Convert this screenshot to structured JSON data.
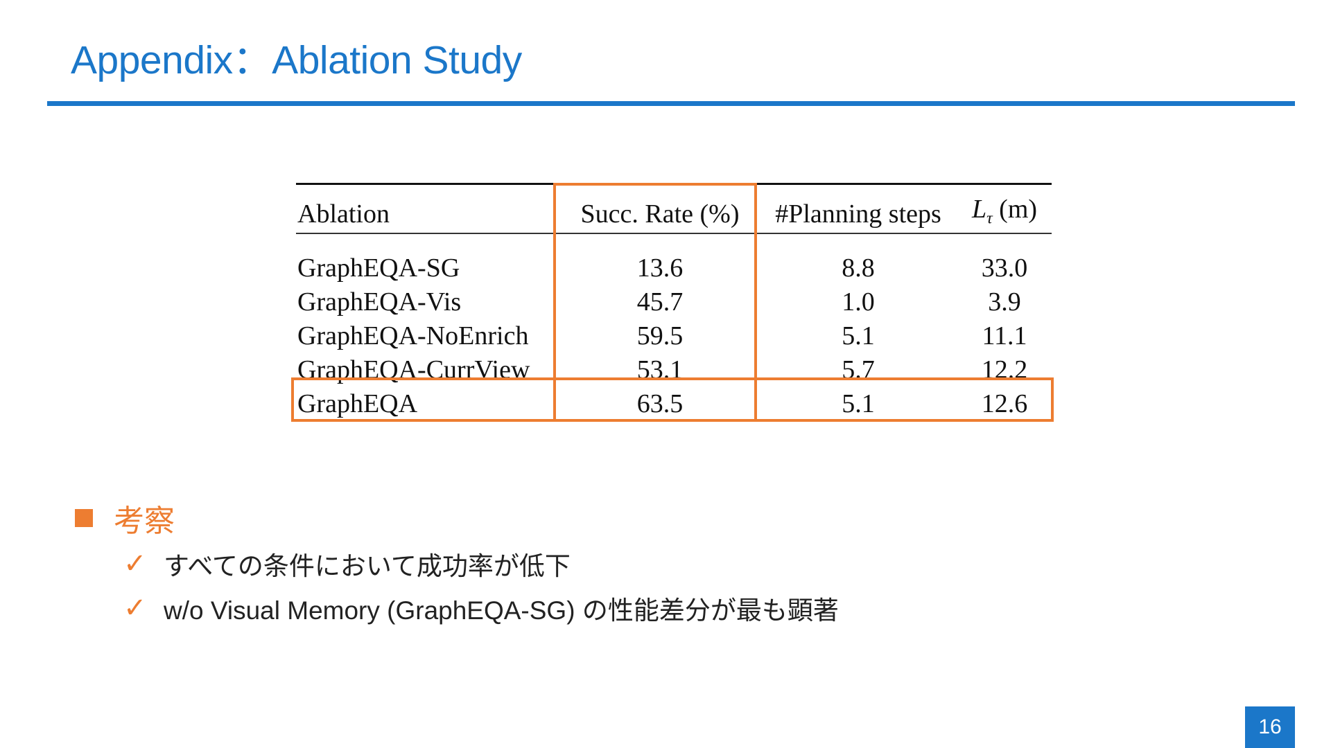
{
  "slide": {
    "title": "Appendix：Ablation Study",
    "page_number": "16"
  },
  "table": {
    "headers": {
      "ablation": "Ablation",
      "succ_rate": "Succ. Rate (%)",
      "planning_steps": "#Planning steps",
      "length_symbol": "L",
      "length_subscript": "τ",
      "length_unit": "(m)"
    },
    "rows": [
      {
        "ablation": "GraphEQA-SG",
        "succ_rate": "13.6",
        "planning_steps": "8.8",
        "length": "33.0"
      },
      {
        "ablation": "GraphEQA-Vis",
        "succ_rate": "45.7",
        "planning_steps": "1.0",
        "length": "3.9"
      },
      {
        "ablation": "GraphEQA-NoEnrich",
        "succ_rate": "59.5",
        "planning_steps": "5.1",
        "length": "11.1"
      },
      {
        "ablation": "GraphEQA-CurrView",
        "succ_rate": "53.1",
        "planning_steps": "5.7",
        "length": "12.2"
      },
      {
        "ablation": "GraphEQA",
        "succ_rate": "63.5",
        "planning_steps": "5.1",
        "length": "12.6"
      }
    ],
    "highlight_color": "#ed7d31"
  },
  "notes": {
    "heading": "考察",
    "check_glyph": "✓",
    "items": [
      "すべての条件において成功率が低下",
      "w/o Visual Memory (GraphEQA-SG) の性能差分が最も顕著"
    ]
  },
  "colors": {
    "accent_blue": "#1b77c9",
    "accent_orange": "#ed7d31"
  }
}
